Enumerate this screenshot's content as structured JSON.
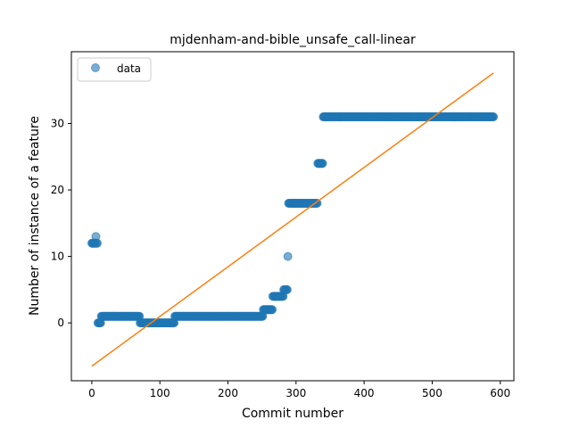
{
  "chart_data": {
    "type": "scatter",
    "title": "mjdenham-and-bible_unsafe_call-linear",
    "xlabel": "Commit number",
    "ylabel": "Number of instance of a feature",
    "xlim": [
      -30,
      620
    ],
    "ylim": [
      -8.7,
      40.8
    ],
    "xticks": [
      0,
      100,
      200,
      300,
      400,
      500,
      600
    ],
    "yticks": [
      0,
      10,
      20,
      30
    ],
    "legend": {
      "position": "top-left",
      "entries": [
        "data"
      ]
    },
    "colors": {
      "data": "#1f77b4",
      "fit": "#ff7f0e"
    },
    "series": [
      {
        "name": "data",
        "kind": "scatter",
        "segments": [
          {
            "from": 0,
            "to": 5,
            "y": 12
          },
          {
            "from": 6,
            "to": 6,
            "y": 13
          },
          {
            "from": 7,
            "to": 8,
            "y": 12
          },
          {
            "from": 9,
            "to": 13,
            "y": 0
          },
          {
            "from": 14,
            "to": 70,
            "y": 1
          },
          {
            "from": 71,
            "to": 121,
            "y": 0
          },
          {
            "from": 122,
            "to": 251,
            "y": 1
          },
          {
            "from": 252,
            "to": 265,
            "y": 2
          },
          {
            "from": 266,
            "to": 281,
            "y": 4
          },
          {
            "from": 282,
            "to": 287,
            "y": 5
          },
          {
            "from": 288,
            "to": 288,
            "y": 10
          },
          {
            "from": 289,
            "to": 331,
            "y": 18
          },
          {
            "from": 332,
            "to": 339,
            "y": 24
          },
          {
            "from": 340,
            "to": 590,
            "y": 31
          }
        ]
      },
      {
        "kind": "line",
        "x": [
          0,
          590
        ],
        "y": [
          -6.5,
          37.6
        ]
      }
    ]
  }
}
